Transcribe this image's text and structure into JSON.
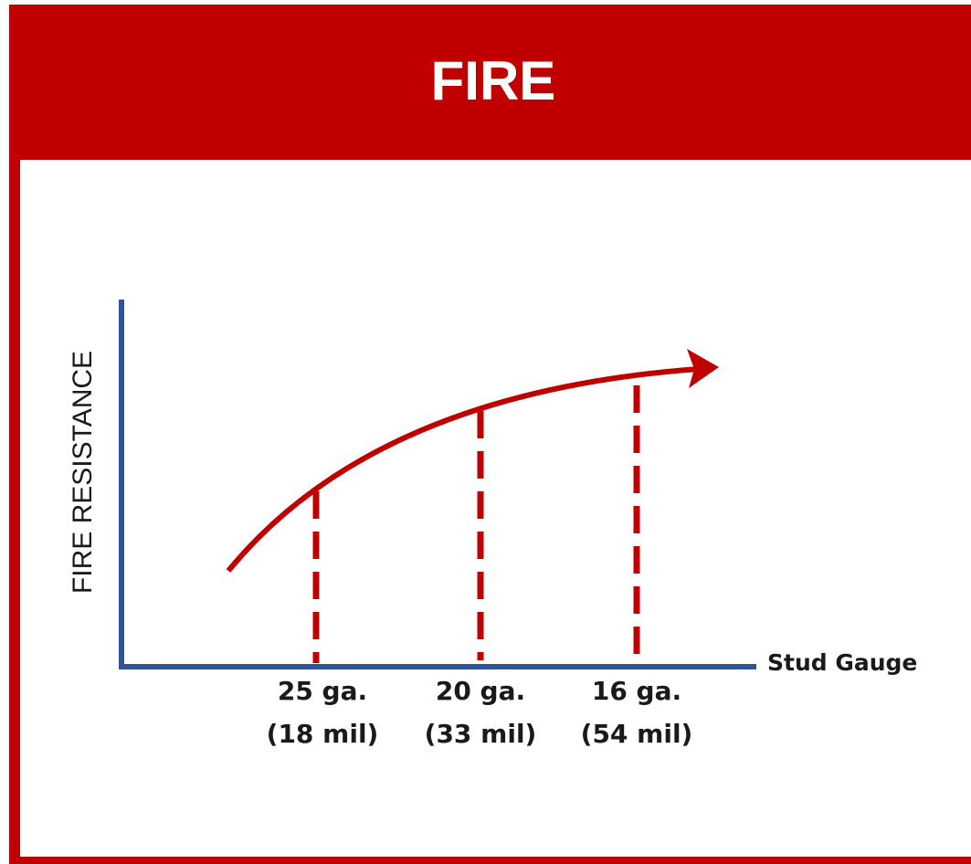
{
  "header": {
    "title": "FIRE"
  },
  "diagram": {
    "y_axis_label": "FIRE RESISTANCE",
    "x_axis_label": "Stud Gauge",
    "gauges": [
      {
        "gauge": "25 ga.",
        "thickness": "(18 mil)"
      },
      {
        "gauge": "20 ga.",
        "thickness": "(33 mil)"
      },
      {
        "gauge": "16 ga.",
        "thickness": "(54 mil)"
      }
    ]
  }
}
